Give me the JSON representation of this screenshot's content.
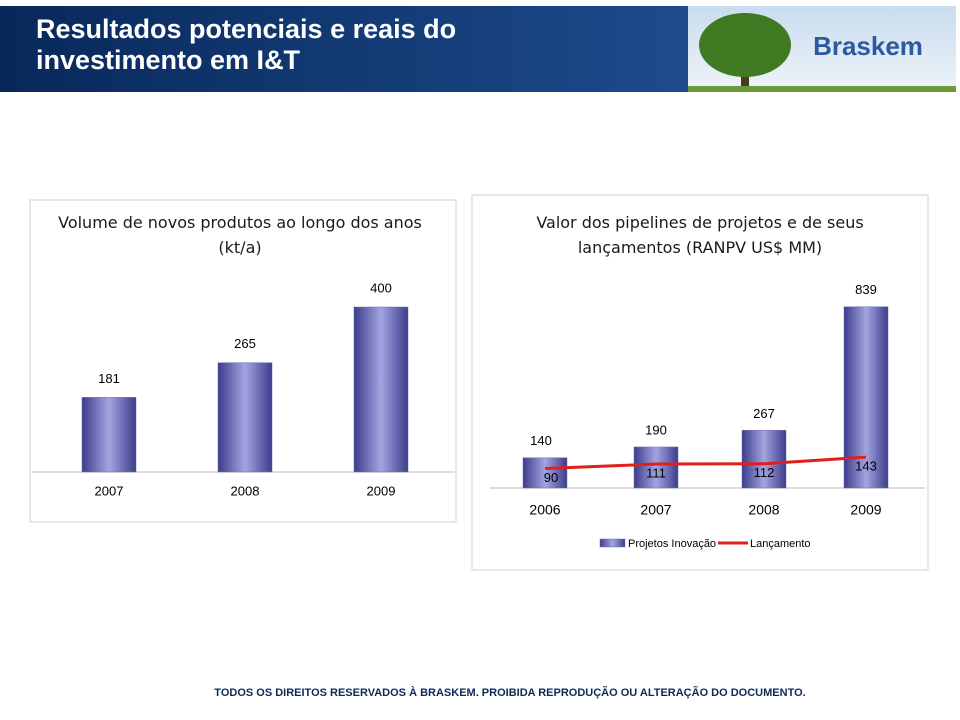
{
  "title": "Resultados potenciais e reais do investimento em I&T",
  "logo": "Braskem",
  "footer": "TODOS OS DIREITOS RESERVADOS À BRASKEM. PROIBIDA REPRODUÇÃO OU ALTERAÇÃO DO DOCUMENTO.",
  "chart_data": [
    {
      "type": "bar",
      "title": "Volume de novos produtos ao longo dos anos (kt/a)",
      "categories": [
        "2007",
        "2008",
        "2009"
      ],
      "values": [
        181,
        265,
        400
      ],
      "color": "#6b6bb8"
    },
    {
      "type": "bar-line",
      "title": "Valor dos pipelines de projetos e de seus lançamentos (RANPV US$ MM)",
      "categories": [
        "2006",
        "2007",
        "2008",
        "2009"
      ],
      "series": [
        {
          "name": "Projetos Inovação",
          "color": "#6b6bb8",
          "values": [
            140,
            190,
            267,
            839
          ]
        },
        {
          "name": "Lançamento",
          "color": "#e0201c",
          "values": [
            90,
            111,
            112,
            143
          ]
        }
      ],
      "legend": "bottom"
    }
  ]
}
